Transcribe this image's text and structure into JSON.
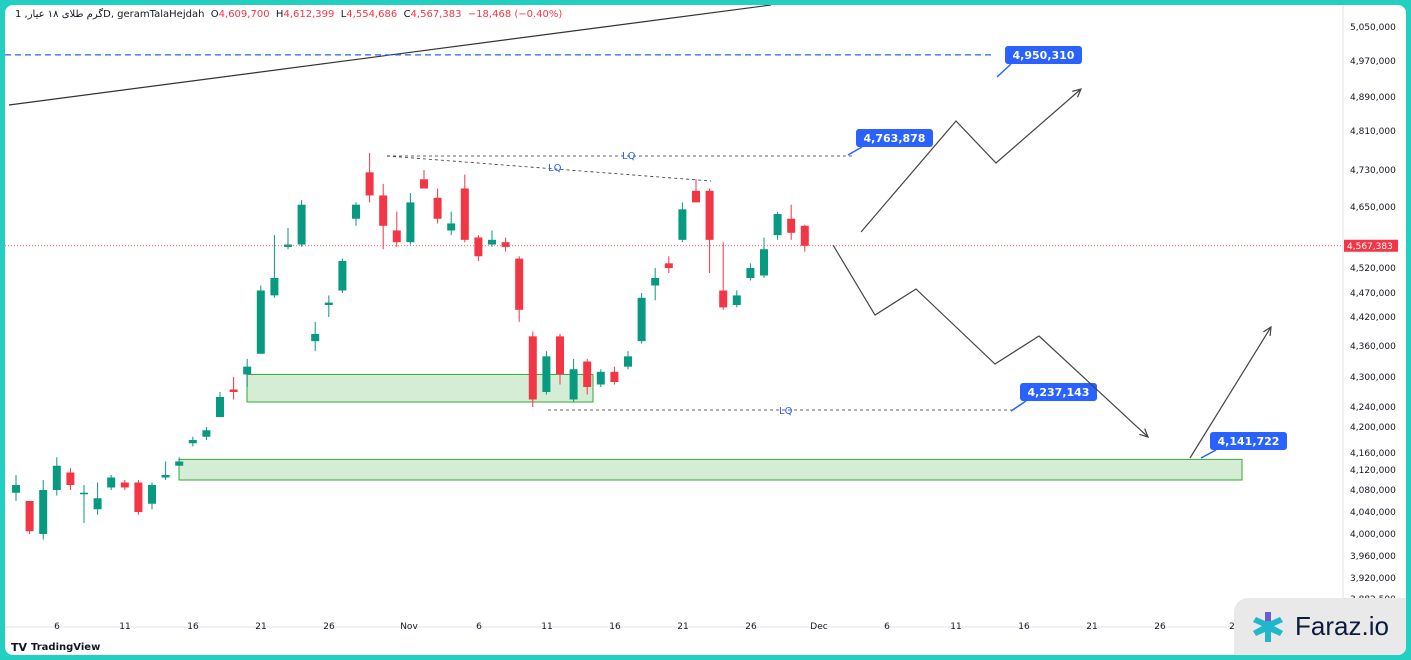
{
  "header": {
    "symbol": "گرم طلای ۱۸ عیار, 1D, geramTalaHejdah",
    "open_label": "O",
    "open": "4,609,700",
    "high_label": "H",
    "high": "4,612,399",
    "low_label": "L",
    "low": "4,554,686",
    "close_label": "C",
    "close": "4,567,383",
    "change": "−18,468 (−0.40%)"
  },
  "footer": {
    "tradingview": "TradingView"
  },
  "brand": {
    "name": "Faraz.io"
  },
  "colors": {
    "up": "#089981",
    "down": "#f23645",
    "callout": "#2962ff",
    "zone_fill": "#d4edd4",
    "zone_stroke": "#3aa53a",
    "projection": "#444444"
  },
  "chart_data": {
    "type": "candlestick",
    "y_axis_ticks": [
      "5,050,000",
      "4,970,000",
      "4,890,000",
      "4,810,000",
      "4,730,000",
      "4,650,000",
      "4,520,000",
      "4,470,000",
      "4,420,000",
      "4,360,000",
      "4,300,000",
      "4,240,000",
      "4,200,000",
      "4,160,000",
      "4,120,000",
      "4,080,000",
      "4,040,000",
      "4,000,000",
      "3,960,000",
      "3,920,000",
      "3,882,500"
    ],
    "x_axis_ticks": [
      "6",
      "11",
      "16",
      "21",
      "26",
      "Nov",
      "6",
      "11",
      "16",
      "21",
      "26",
      "Dec",
      "6",
      "11",
      "16",
      "21",
      "26",
      "2"
    ],
    "last_price": "4,567,383",
    "candles": [
      {
        "o": 4075000,
        "h": 4110000,
        "l": 4060000,
        "c": 4090000
      },
      {
        "o": 4060000,
        "h": 4060000,
        "l": 4000000,
        "c": 4005000
      },
      {
        "o": 4000000,
        "h": 4100000,
        "l": 3990000,
        "c": 4080000
      },
      {
        "o": 4080000,
        "h": 4150000,
        "l": 4070000,
        "c": 4130000
      },
      {
        "o": 4115000,
        "h": 4125000,
        "l": 4080000,
        "c": 4090000
      },
      {
        "o": 4075000,
        "h": 4090000,
        "l": 4020000,
        "c": 4075000
      },
      {
        "o": 4045000,
        "h": 4095000,
        "l": 4035000,
        "c": 4065000
      },
      {
        "o": 4085000,
        "h": 4110000,
        "l": 4080000,
        "c": 4105000
      },
      {
        "o": 4095000,
        "h": 4100000,
        "l": 4080000,
        "c": 4085000
      },
      {
        "o": 4095000,
        "h": 4100000,
        "l": 4035000,
        "c": 4040000
      },
      {
        "o": 4055000,
        "h": 4095000,
        "l": 4045000,
        "c": 4090000
      },
      {
        "o": 4105000,
        "h": 4140000,
        "l": 4100000,
        "c": 4110000
      },
      {
        "o": 4130000,
        "h": 4150000,
        "l": 4130000,
        "c": 4140000
      },
      {
        "o": 4175000,
        "h": 4185000,
        "l": 4170000,
        "c": 4180000
      },
      {
        "o": 4185000,
        "h": 4200000,
        "l": 4180000,
        "c": 4195000
      },
      {
        "o": 4220000,
        "h": 4270000,
        "l": 4220000,
        "c": 4260000
      },
      {
        "o": 4275000,
        "h": 4300000,
        "l": 4255000,
        "c": 4270000
      },
      {
        "o": 4305000,
        "h": 4335000,
        "l": 4280000,
        "c": 4320000
      },
      {
        "o": 4345000,
        "h": 4485000,
        "l": 4345000,
        "c": 4475000
      },
      {
        "o": 4465000,
        "h": 4590000,
        "l": 4460000,
        "c": 4500000
      },
      {
        "o": 4565000,
        "h": 4605000,
        "l": 4560000,
        "c": 4570000
      },
      {
        "o": 4570000,
        "h": 4665000,
        "l": 4565000,
        "c": 4655000
      },
      {
        "o": 4370000,
        "h": 4410000,
        "l": 4350000,
        "c": 4385000
      },
      {
        "o": 4445000,
        "h": 4465000,
        "l": 4420000,
        "c": 4450000
      },
      {
        "o": 4475000,
        "h": 4540000,
        "l": 4470000,
        "c": 4535000
      },
      {
        "o": 4625000,
        "h": 4660000,
        "l": 4610000,
        "c": 4655000
      },
      {
        "o": 4725000,
        "h": 4765000,
        "l": 4660000,
        "c": 4675000
      },
      {
        "o": 4675000,
        "h": 4700000,
        "l": 4560000,
        "c": 4610000
      },
      {
        "o": 4600000,
        "h": 4640000,
        "l": 4565000,
        "c": 4575000
      },
      {
        "o": 4575000,
        "h": 4680000,
        "l": 4570000,
        "c": 4660000
      },
      {
        "o": 4710000,
        "h": 4730000,
        "l": 4690000,
        "c": 4690000
      },
      {
        "o": 4670000,
        "h": 4690000,
        "l": 4615000,
        "c": 4625000
      },
      {
        "o": 4600000,
        "h": 4640000,
        "l": 4590000,
        "c": 4615000
      },
      {
        "o": 4690000,
        "h": 4720000,
        "l": 4575000,
        "c": 4580000
      },
      {
        "o": 4585000,
        "h": 4590000,
        "l": 4535000,
        "c": 4545000
      },
      {
        "o": 4570000,
        "h": 4600000,
        "l": 4565000,
        "c": 4580000
      },
      {
        "o": 4575000,
        "h": 4585000,
        "l": 4555000,
        "c": 4565000
      },
      {
        "o": 4540000,
        "h": 4545000,
        "l": 4410000,
        "c": 4435000
      },
      {
        "o": 4380000,
        "h": 4390000,
        "l": 4240000,
        "c": 4255000
      },
      {
        "o": 4270000,
        "h": 4350000,
        "l": 4265000,
        "c": 4340000
      },
      {
        "o": 4380000,
        "h": 4385000,
        "l": 4285000,
        "c": 4305000
      },
      {
        "o": 4255000,
        "h": 4335000,
        "l": 4250000,
        "c": 4315000
      },
      {
        "o": 4330000,
        "h": 4335000,
        "l": 4265000,
        "c": 4280000
      },
      {
        "o": 4285000,
        "h": 4315000,
        "l": 4280000,
        "c": 4310000
      },
      {
        "o": 4310000,
        "h": 4320000,
        "l": 4285000,
        "c": 4290000
      },
      {
        "o": 4320000,
        "h": 4350000,
        "l": 4315000,
        "c": 4340000
      },
      {
        "o": 4370000,
        "h": 4470000,
        "l": 4365000,
        "c": 4460000
      },
      {
        "o": 4485000,
        "h": 4520000,
        "l": 4455000,
        "c": 4500000
      },
      {
        "o": 4530000,
        "h": 4545000,
        "l": 4510000,
        "c": 4520000
      },
      {
        "o": 4580000,
        "h": 4660000,
        "l": 4575000,
        "c": 4645000
      },
      {
        "o": 4685000,
        "h": 4710000,
        "l": 4660000,
        "c": 4660000
      },
      {
        "o": 4685000,
        "h": 4690000,
        "l": 4510000,
        "c": 4580000
      },
      {
        "o": 4475000,
        "h": 4575000,
        "l": 4435000,
        "c": 4440000
      },
      {
        "o": 4445000,
        "h": 4475000,
        "l": 4440000,
        "c": 4465000
      },
      {
        "o": 4500000,
        "h": 4530000,
        "l": 4495000,
        "c": 4520000
      },
      {
        "o": 4505000,
        "h": 4585000,
        "l": 4500000,
        "c": 4560000
      },
      {
        "o": 4590000,
        "h": 4640000,
        "l": 4580000,
        "c": 4635000
      },
      {
        "o": 4625000,
        "h": 4655000,
        "l": 4580000,
        "c": 4595000
      },
      {
        "o": 4610000,
        "h": 4612399,
        "l": 4554686,
        "c": 4567383
      }
    ],
    "levels": [
      {
        "price": 4950310,
        "label": "4,950,310",
        "style": "dashed-blue"
      },
      {
        "price": 4763878,
        "label": "4,763,878"
      },
      {
        "price": 4237143,
        "label": "4,237,143"
      },
      {
        "price": 4141722,
        "label": "4,141,722"
      }
    ],
    "liquidity_labels": [
      "LQ",
      "LQ",
      "LQ"
    ],
    "zones": [
      {
        "from": 4250000,
        "to": 4305000,
        "name": "demand-zone-1"
      },
      {
        "from": 4100000,
        "to": 4145000,
        "name": "demand-zone-2"
      }
    ]
  }
}
